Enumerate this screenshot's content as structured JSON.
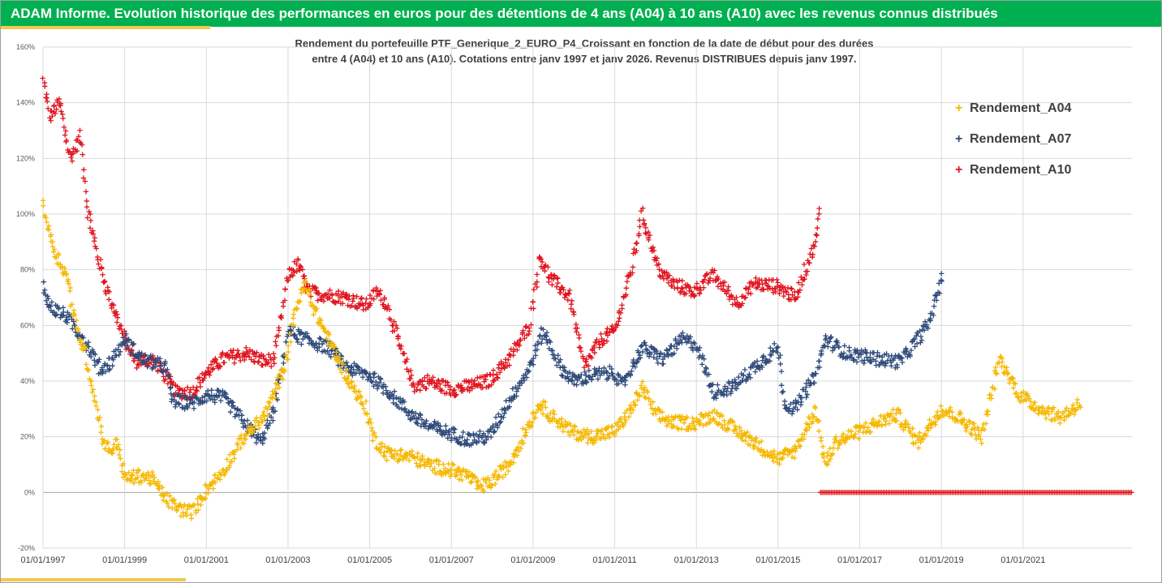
{
  "header": {
    "title": "ADAM Informe. Evolution historique des performances en euros pour des détentions de 4 ans (A04) à 10 ans (A10) avec les revenus connus distribués"
  },
  "colors": {
    "header": "#00b050",
    "accent": "#f2c94c",
    "A04": "#f5b800",
    "A07": "#2f4a7a",
    "A10": "#e0141e"
  },
  "chart_data": {
    "type": "scatter",
    "title_lines": [
      "Rendement du portefeuille PTF_Generique_2_EURO_P4_Croissant  en fonction de la date de début pour des durées",
      "entre 4 (A04) et 10 ans (A10). Cotations entre janv 1997 et janv 2026. Revenus DISTRIBUES depuis janv 1997."
    ],
    "x_axis": {
      "type": "date",
      "range": [
        "1997-01-01",
        "2023-09-01"
      ],
      "tick_labels": [
        "01/01/1997",
        "01/01/1999",
        "01/01/2001",
        "01/01/2003",
        "01/01/2005",
        "01/01/2007",
        "01/01/2009",
        "01/01/2011",
        "01/01/2013",
        "01/01/2015",
        "01/01/2017",
        "01/01/2019",
        "01/01/2021"
      ]
    },
    "y_axis": {
      "range": [
        -20,
        160
      ],
      "unit": "%",
      "tick_labels": [
        "-20%",
        "0%",
        "20%",
        "40%",
        "60%",
        "80%",
        "100%",
        "120%",
        "140%",
        "160%"
      ]
    },
    "grid": true,
    "marker": "+",
    "legend_position": "top-right",
    "series": [
      {
        "name": "Rendement_A04",
        "color": "#f5b800",
        "end": "2022-06-01",
        "anchors": [
          [
            "1997-01-01",
            105
          ],
          [
            "1997-02-15",
            95
          ],
          [
            "1997-05-01",
            85
          ],
          [
            "1997-08-01",
            78
          ],
          [
            "1997-11-01",
            58
          ],
          [
            "1998-01-01",
            52
          ],
          [
            "1998-04-01",
            35
          ],
          [
            "1998-07-01",
            17
          ],
          [
            "1998-09-01",
            15
          ],
          [
            "1998-11-01",
            18
          ],
          [
            "1999-01-01",
            5
          ],
          [
            "1999-06-01",
            6
          ],
          [
            "1999-09-01",
            5
          ],
          [
            "2000-01-01",
            -2
          ],
          [
            "2000-05-01",
            -6
          ],
          [
            "2000-09-01",
            -7
          ],
          [
            "2001-01-01",
            1
          ],
          [
            "2001-06-01",
            8
          ],
          [
            "2001-12-01",
            20
          ],
          [
            "2002-06-01",
            27
          ],
          [
            "2002-12-01",
            45
          ],
          [
            "2003-03-01",
            65
          ],
          [
            "2003-06-01",
            75
          ],
          [
            "2003-09-01",
            65
          ],
          [
            "2004-01-01",
            55
          ],
          [
            "2004-06-01",
            42
          ],
          [
            "2004-12-01",
            30
          ],
          [
            "2005-02-01",
            20
          ],
          [
            "2005-06-01",
            14
          ],
          [
            "2006-01-01",
            13
          ],
          [
            "2006-06-01",
            10
          ],
          [
            "2007-01-01",
            8
          ],
          [
            "2007-06-01",
            6
          ],
          [
            "2007-09-01",
            2
          ],
          [
            "2007-12-01",
            3
          ],
          [
            "2008-06-01",
            10
          ],
          [
            "2008-12-01",
            25
          ],
          [
            "2009-03-01",
            32
          ],
          [
            "2009-06-01",
            28
          ],
          [
            "2009-12-01",
            22
          ],
          [
            "2010-06-01",
            20
          ],
          [
            "2011-01-01",
            22
          ],
          [
            "2011-06-01",
            30
          ],
          [
            "2011-09-01",
            38
          ],
          [
            "2012-01-01",
            28
          ],
          [
            "2012-06-01",
            25
          ],
          [
            "2013-01-01",
            25
          ],
          [
            "2013-06-01",
            28
          ],
          [
            "2014-01-01",
            22
          ],
          [
            "2014-06-01",
            18
          ],
          [
            "2015-01-01",
            12
          ],
          [
            "2015-06-01",
            15
          ],
          [
            "2015-12-01",
            30
          ],
          [
            "2016-03-01",
            10
          ],
          [
            "2016-06-01",
            18
          ],
          [
            "2017-01-01",
            22
          ],
          [
            "2017-06-01",
            25
          ],
          [
            "2017-12-01",
            28
          ],
          [
            "2018-06-01",
            18
          ],
          [
            "2019-01-01",
            30
          ],
          [
            "2019-06-01",
            27
          ],
          [
            "2020-01-01",
            20
          ],
          [
            "2020-06-01",
            48
          ],
          [
            "2020-12-01",
            35
          ],
          [
            "2021-06-01",
            30
          ],
          [
            "2021-12-01",
            27
          ],
          [
            "2022-06-01",
            32
          ]
        ]
      },
      {
        "name": "Rendement_A07",
        "color": "#2f4a7a",
        "end": "2019-01-15",
        "anchors": [
          [
            "1997-01-01",
            74
          ],
          [
            "1997-03-01",
            67
          ],
          [
            "1997-08-01",
            63
          ],
          [
            "1998-01-01",
            55
          ],
          [
            "1998-06-01",
            44
          ],
          [
            "1998-09-01",
            47
          ],
          [
            "1999-01-01",
            55
          ],
          [
            "1999-06-01",
            48
          ],
          [
            "2000-01-01",
            45
          ],
          [
            "2000-03-01",
            33
          ],
          [
            "2000-09-01",
            32
          ],
          [
            "2001-01-01",
            35
          ],
          [
            "2001-06-01",
            34
          ],
          [
            "2002-01-01",
            24
          ],
          [
            "2002-05-01",
            18
          ],
          [
            "2002-09-01",
            30
          ],
          [
            "2003-01-01",
            58
          ],
          [
            "2003-06-01",
            55
          ],
          [
            "2004-01-01",
            52
          ],
          [
            "2004-06-01",
            45
          ],
          [
            "2005-01-01",
            42
          ],
          [
            "2005-06-01",
            37
          ],
          [
            "2006-01-01",
            28
          ],
          [
            "2006-06-01",
            24
          ],
          [
            "2007-01-01",
            21
          ],
          [
            "2007-06-01",
            19
          ],
          [
            "2007-12-01",
            20
          ],
          [
            "2008-06-01",
            33
          ],
          [
            "2008-12-01",
            45
          ],
          [
            "2009-04-01",
            58
          ],
          [
            "2009-09-01",
            45
          ],
          [
            "2010-01-01",
            40
          ],
          [
            "2010-06-01",
            42
          ],
          [
            "2011-01-01",
            43
          ],
          [
            "2011-03-01",
            38
          ],
          [
            "2011-09-01",
            52
          ],
          [
            "2012-03-01",
            48
          ],
          [
            "2012-09-01",
            55
          ],
          [
            "2013-01-01",
            53
          ],
          [
            "2013-06-01",
            36
          ],
          [
            "2013-12-01",
            38
          ],
          [
            "2014-06-01",
            45
          ],
          [
            "2015-01-01",
            52
          ],
          [
            "2015-03-01",
            32
          ],
          [
            "2015-06-01",
            30
          ],
          [
            "2015-12-01",
            42
          ],
          [
            "2016-03-01",
            55
          ],
          [
            "2016-09-01",
            50
          ],
          [
            "2017-06-01",
            48
          ],
          [
            "2018-01-01",
            47
          ],
          [
            "2018-06-01",
            55
          ],
          [
            "2018-09-01",
            60
          ],
          [
            "2019-01-15",
            78
          ]
        ]
      },
      {
        "name": "Rendement_A10",
        "color": "#e0141e",
        "end": "2016-01-15",
        "anchors": [
          [
            "1997-01-01",
            148
          ],
          [
            "1997-03-01",
            135
          ],
          [
            "1997-06-01",
            140
          ],
          [
            "1997-09-01",
            120
          ],
          [
            "1997-12-01",
            128
          ],
          [
            "1998-02-01",
            102
          ],
          [
            "1998-05-01",
            85
          ],
          [
            "1998-08-01",
            72
          ],
          [
            "1998-11-01",
            62
          ],
          [
            "1999-01-01",
            55
          ],
          [
            "1999-04-01",
            47
          ],
          [
            "1999-09-01",
            48
          ],
          [
            "2000-01-01",
            42
          ],
          [
            "2000-04-01",
            36
          ],
          [
            "2000-09-01",
            36
          ],
          [
            "2001-01-01",
            43
          ],
          [
            "2001-06-01",
            48
          ],
          [
            "2002-01-01",
            50
          ],
          [
            "2002-06-01",
            47
          ],
          [
            "2002-09-01",
            48
          ],
          [
            "2003-01-01",
            78
          ],
          [
            "2003-04-01",
            82
          ],
          [
            "2003-07-01",
            72
          ],
          [
            "2003-12-01",
            71
          ],
          [
            "2004-06-01",
            70
          ],
          [
            "2004-12-01",
            67
          ],
          [
            "2005-03-01",
            72
          ],
          [
            "2005-06-01",
            68
          ],
          [
            "2005-10-01",
            52
          ],
          [
            "2006-02-01",
            38
          ],
          [
            "2006-06-01",
            40
          ],
          [
            "2007-01-01",
            37
          ],
          [
            "2007-06-01",
            38
          ],
          [
            "2007-12-01",
            40
          ],
          [
            "2008-06-01",
            48
          ],
          [
            "2008-12-01",
            60
          ],
          [
            "2009-03-01",
            85
          ],
          [
            "2009-06-01",
            77
          ],
          [
            "2009-12-01",
            70
          ],
          [
            "2010-04-01",
            45
          ],
          [
            "2010-09-01",
            55
          ],
          [
            "2011-01-01",
            58
          ],
          [
            "2011-06-01",
            80
          ],
          [
            "2011-09-01",
            100
          ],
          [
            "2012-02-01",
            80
          ],
          [
            "2012-06-01",
            75
          ],
          [
            "2012-12-01",
            72
          ],
          [
            "2013-06-01",
            78
          ],
          [
            "2014-01-01",
            68
          ],
          [
            "2014-06-01",
            75
          ],
          [
            "2015-01-01",
            74
          ],
          [
            "2015-06-01",
            70
          ],
          [
            "2015-12-01",
            90
          ],
          [
            "2016-01-15",
            103
          ]
        ]
      }
    ],
    "zero_band": {
      "color": "#e0141e",
      "from": "2016-01-15",
      "to": "2023-09-01",
      "value": 0
    }
  }
}
